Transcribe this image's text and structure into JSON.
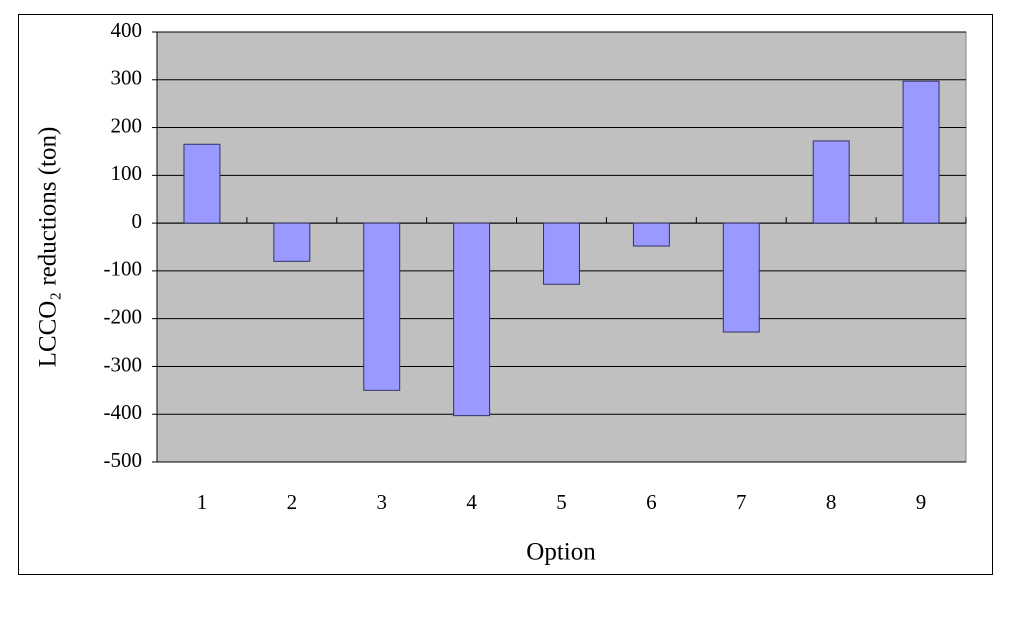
{
  "chart_data": {
    "type": "bar",
    "categories": [
      "1",
      "2",
      "3",
      "4",
      "5",
      "6",
      "7",
      "8",
      "9"
    ],
    "values": [
      165,
      -80,
      -350,
      -403,
      -128,
      -48,
      -228,
      172,
      297
    ],
    "color": "#9999ff",
    "x_label": "Option",
    "y_label": "LCCO₂ reductions (ton)",
    "ylim": [
      -500,
      400
    ],
    "yticks": [
      -500,
      -400,
      -300,
      -200,
      -100,
      0,
      100,
      200,
      300,
      400
    ],
    "grid": true
  }
}
